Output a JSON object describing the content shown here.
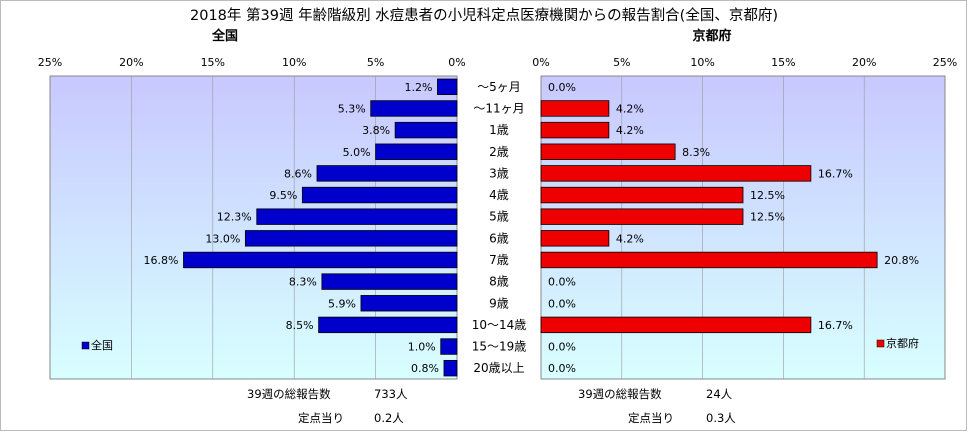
{
  "title": "2018年 第39週 年齢階級別 水痘患者の小児科定点医療機関からの報告割合(全国、京都府)",
  "age_groups": [
    "～5ヶ月",
    "～11ヶ月",
    "1歳",
    "2歳",
    "3歳",
    "4歳",
    "5歳",
    "6歳",
    "7歳",
    "8歳",
    "9歳",
    "10～14歳",
    "15～19歳",
    "20歳以上"
  ],
  "chart_data": [
    {
      "type": "bar",
      "orientation": "horizontal",
      "direction": "reversed",
      "title": "全国",
      "legend": "全国",
      "legend_position": "bottom-left",
      "color": "#0000cc",
      "xlim": [
        0,
        25
      ],
      "ticks": [
        "25%",
        "20%",
        "15%",
        "10%",
        "5%",
        "0%"
      ],
      "values": [
        1.2,
        5.3,
        3.8,
        5.0,
        8.6,
        9.5,
        12.3,
        13.0,
        16.8,
        8.3,
        5.9,
        8.5,
        1.0,
        0.8
      ],
      "labels": [
        "1.2%",
        "5.3%",
        "3.8%",
        "5.0%",
        "8.6%",
        "9.5%",
        "12.3%",
        "13.0%",
        "16.8%",
        "8.3%",
        "5.9%",
        "8.5%",
        "1.0%",
        "0.8%"
      ],
      "grid": true
    },
    {
      "type": "bar",
      "orientation": "horizontal",
      "title": "京都府",
      "legend": "京都府",
      "legend_position": "bottom-right",
      "color": "#ee0000",
      "xlim": [
        0,
        25
      ],
      "ticks": [
        "0%",
        "5%",
        "10%",
        "15%",
        "20%",
        "25%"
      ],
      "values": [
        0.0,
        4.2,
        4.2,
        8.3,
        16.7,
        12.5,
        12.5,
        4.2,
        20.8,
        0.0,
        0.0,
        16.7,
        0.0,
        0.0
      ],
      "labels": [
        "0.0%",
        "4.2%",
        "4.2%",
        "8.3%",
        "16.7%",
        "12.5%",
        "12.5%",
        "4.2%",
        "20.8%",
        "0.0%",
        "0.0%",
        "16.7%",
        "0.0%",
        "0.0%"
      ],
      "grid": true
    }
  ],
  "footer": {
    "national": {
      "total_label": "39週の総報告数",
      "total_value": "733人",
      "per_label": "定点当り",
      "per_value": "0.2人"
    },
    "kyoto": {
      "total_label": "39週の総報告数",
      "total_value": "24人",
      "per_label": "定点当り",
      "per_value": "0.3人"
    }
  },
  "colors": {
    "panel_top": "#c8c8ff",
    "panel_bottom": "#d8ffff"
  }
}
